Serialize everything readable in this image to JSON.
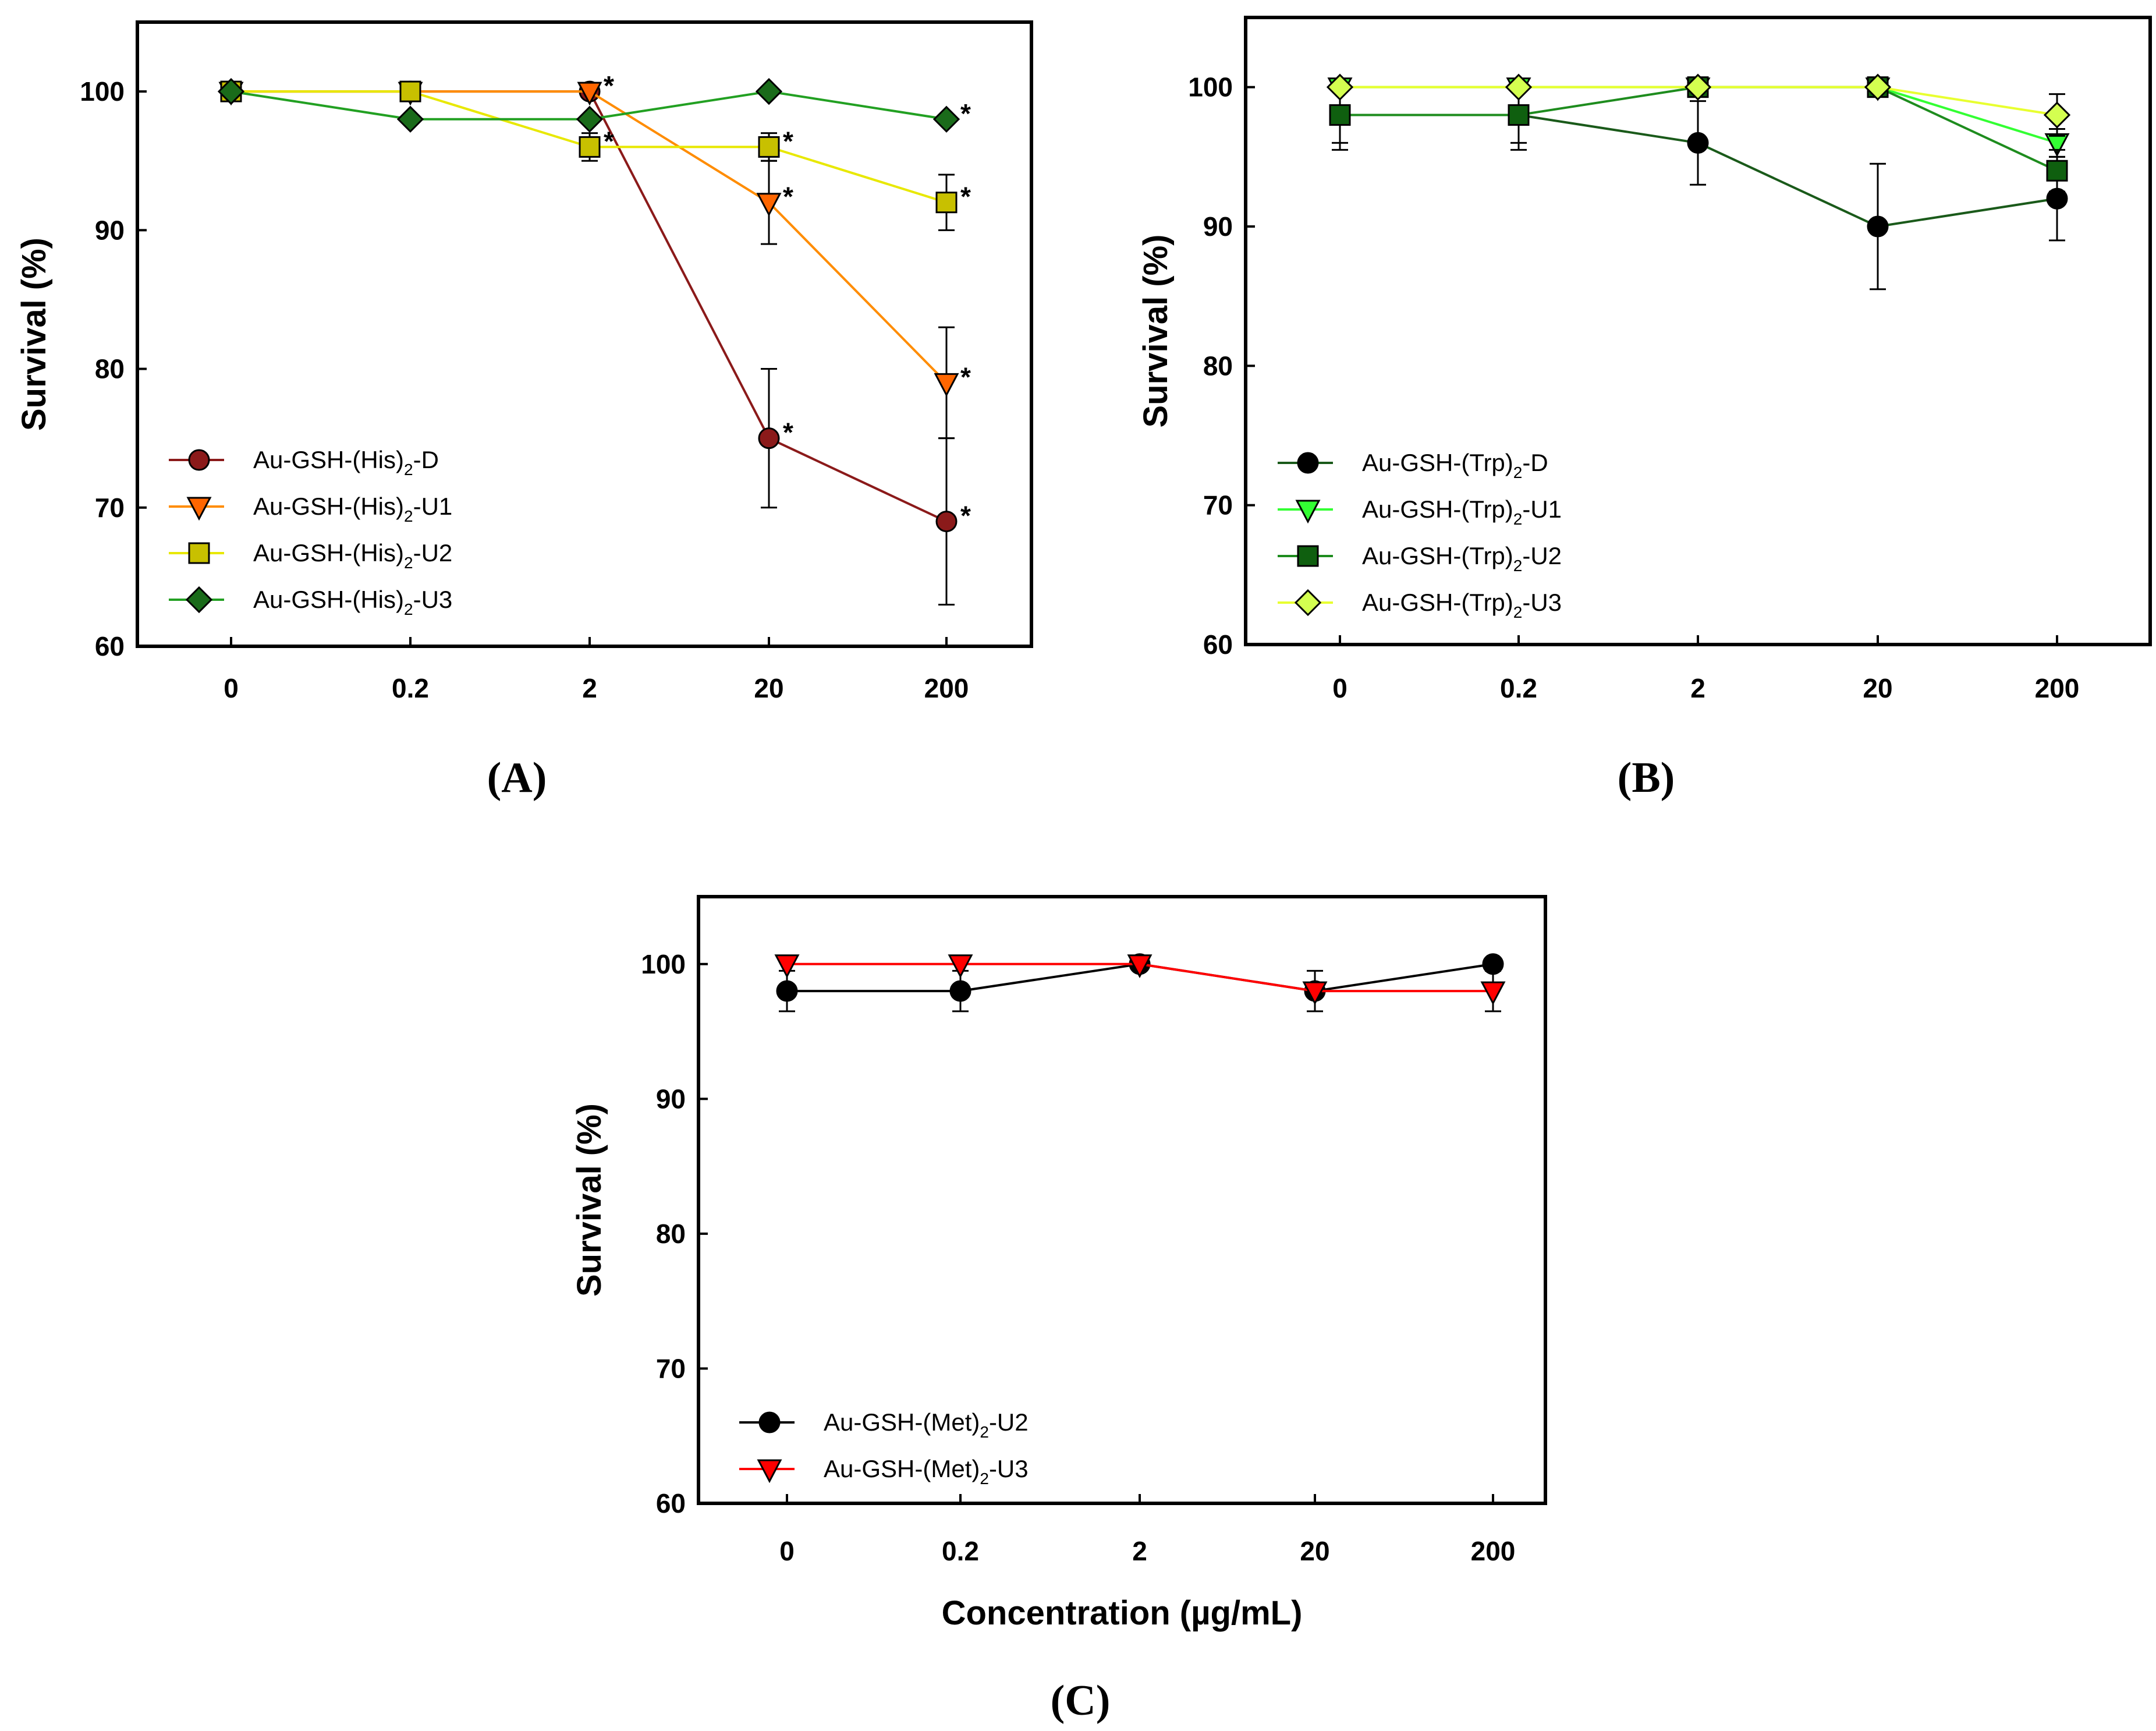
{
  "figure": {
    "x_axis_title": "Concentration (µg/mL)"
  },
  "chart_data": [
    {
      "type": "line",
      "panel": "A",
      "panel_label": "(A)",
      "ylabel": "Survival (%)",
      "xlabel": "",
      "categories": [
        "0",
        "0.2",
        "2",
        "20",
        "200"
      ],
      "ylim": [
        60,
        105
      ],
      "yticks": [
        60,
        70,
        80,
        90,
        100
      ],
      "legend_position": "bottom-left",
      "series": [
        {
          "name": "Au-GSH-(His)2-D",
          "label_prefix": "Au-GSH-(His)",
          "label_sub": "2",
          "label_suffix": "-D",
          "marker": "circle",
          "line_color": "#8b1a1a",
          "fill_color": "#8b1a1a",
          "values": [
            100,
            100,
            100,
            75,
            69
          ],
          "errors": [
            0,
            0,
            0,
            5,
            6
          ],
          "significant": [
            false,
            false,
            true,
            true,
            true
          ]
        },
        {
          "name": "Au-GSH-(His)2-U1",
          "label_prefix": "Au-GSH-(His)",
          "label_sub": "2",
          "label_suffix": "-U1",
          "marker": "triangle-down",
          "line_color": "#ff8c00",
          "fill_color": "#ff6600",
          "values": [
            100,
            100,
            100,
            92,
            79
          ],
          "errors": [
            0,
            0,
            0,
            3,
            4
          ],
          "significant": [
            false,
            false,
            true,
            true,
            true
          ]
        },
        {
          "name": "Au-GSH-(His)2-U2",
          "label_prefix": "Au-GSH-(His)",
          "label_sub": "2",
          "label_suffix": "-U2",
          "marker": "square",
          "line_color": "#e8e800",
          "fill_color": "#c8c000",
          "values": [
            100,
            100,
            96,
            96,
            92
          ],
          "errors": [
            0,
            0,
            1,
            1,
            2
          ],
          "significant": [
            false,
            false,
            true,
            true,
            true
          ]
        },
        {
          "name": "Au-GSH-(His)2-U3",
          "label_prefix": "Au-GSH-(His)",
          "label_sub": "2",
          "label_suffix": "-U3",
          "marker": "diamond",
          "line_color": "#22a022",
          "fill_color": "#1a6b1a",
          "values": [
            100,
            98,
            98,
            100,
            98
          ],
          "errors": [
            0,
            0,
            0,
            0,
            0
          ],
          "significant": [
            false,
            false,
            false,
            false,
            true
          ]
        }
      ]
    },
    {
      "type": "line",
      "panel": "B",
      "panel_label": "(B)",
      "ylabel": "Survival (%)",
      "xlabel": "",
      "categories": [
        "0",
        "0.2",
        "2",
        "20",
        "200"
      ],
      "ylim": [
        60,
        105
      ],
      "yticks": [
        60,
        70,
        80,
        90,
        100
      ],
      "legend_position": "bottom-left",
      "series": [
        {
          "name": "Au-GSH-(Trp)2-D",
          "label_prefix": "Au-GSH-(Trp)",
          "label_sub": "2",
          "label_suffix": "-D",
          "marker": "circle",
          "line_color": "#1a5a1a",
          "fill_color": "#000000",
          "values": [
            98,
            98,
            96,
            90,
            92
          ],
          "errors": [
            2.5,
            2.5,
            3,
            4.5,
            3
          ],
          "significant": [
            false,
            false,
            false,
            false,
            false
          ]
        },
        {
          "name": "Au-GSH-(Trp)2-U1",
          "label_prefix": "Au-GSH-(Trp)",
          "label_sub": "2",
          "label_suffix": "-U1",
          "marker": "triangle-down",
          "line_color": "#33ff33",
          "fill_color": "#33ff33",
          "values": [
            100,
            100,
            100,
            100,
            96
          ],
          "errors": [
            0,
            0,
            0,
            0,
            1
          ],
          "significant": [
            false,
            false,
            false,
            false,
            false
          ]
        },
        {
          "name": "Au-GSH-(Trp)2-U2",
          "label_prefix": "Au-GSH-(Trp)",
          "label_sub": "2",
          "label_suffix": "-U2",
          "marker": "square",
          "line_color": "#1e8c1e",
          "fill_color": "#0f5f0f",
          "values": [
            98,
            98,
            100,
            100,
            94
          ],
          "errors": [
            2,
            2,
            0,
            0,
            1.5
          ],
          "significant": [
            false,
            false,
            false,
            false,
            false
          ]
        },
        {
          "name": "Au-GSH-(Trp)2-U3",
          "label_prefix": "Au-GSH-(Trp)",
          "label_sub": "2",
          "label_suffix": "-U3",
          "marker": "diamond",
          "line_color": "#e8ff30",
          "fill_color": "#d4ff50",
          "values": [
            100,
            100,
            100,
            100,
            98
          ],
          "errors": [
            0,
            0,
            0,
            0,
            1.5
          ],
          "significant": [
            false,
            false,
            false,
            false,
            false
          ]
        }
      ]
    },
    {
      "type": "line",
      "panel": "C",
      "panel_label": "(C)",
      "ylabel": "Survival (%)",
      "xlabel": "Concentration (µg/mL)",
      "categories": [
        "0",
        "0.2",
        "2",
        "20",
        "200"
      ],
      "ylim": [
        60,
        105
      ],
      "yticks": [
        60,
        70,
        80,
        90,
        100
      ],
      "legend_position": "bottom-left",
      "series": [
        {
          "name": "Au-GSH-(Met)2-U2",
          "label_prefix": "Au-GSH-(Met)",
          "label_sub": "2",
          "label_suffix": "-U2",
          "marker": "circle",
          "line_color": "#000000",
          "fill_color": "#000000",
          "values": [
            98,
            98,
            100,
            98,
            100
          ],
          "errors": [
            1.5,
            1.5,
            0,
            1.5,
            0
          ],
          "significant": [
            false,
            false,
            false,
            false,
            false
          ]
        },
        {
          "name": "Au-GSH-(Met)2-U3",
          "label_prefix": "Au-GSH-(Met)",
          "label_sub": "2",
          "label_suffix": "-U3",
          "marker": "triangle-down",
          "line_color": "#ff0000",
          "fill_color": "#ff0000",
          "values": [
            100,
            100,
            100,
            98,
            98
          ],
          "errors": [
            0,
            0,
            0,
            0,
            1.5
          ],
          "significant": [
            false,
            false,
            false,
            false,
            false
          ]
        }
      ]
    }
  ]
}
